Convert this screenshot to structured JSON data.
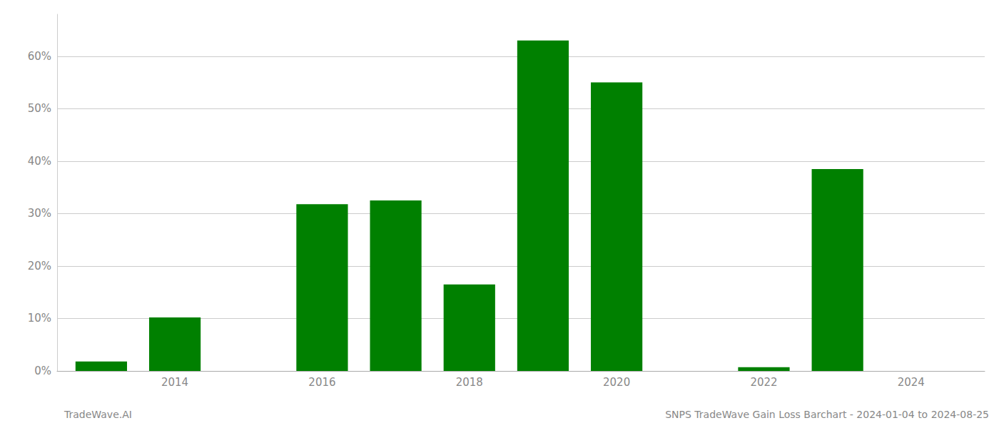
{
  "chart_data": {
    "type": "bar",
    "x": [
      2013,
      2014,
      2015,
      2016,
      2017,
      2018,
      2019,
      2020,
      2021,
      2022,
      2023,
      2024
    ],
    "values": [
      0.018,
      0.102,
      0.0,
      0.318,
      0.325,
      0.165,
      0.63,
      0.55,
      0.0,
      0.007,
      0.385,
      0.0
    ],
    "color": "#008000",
    "xlim": [
      2012.4,
      2025.0
    ],
    "xticks": [
      2014,
      2016,
      2018,
      2020,
      2022,
      2024
    ],
    "ylim": [
      0,
      0.68
    ],
    "yticks": [
      {
        "value": 0,
        "label": "0%"
      },
      {
        "value": 0.1,
        "label": "10%"
      },
      {
        "value": 0.2,
        "label": "20%"
      },
      {
        "value": 0.3,
        "label": "30%"
      },
      {
        "value": 0.4,
        "label": "40%"
      },
      {
        "value": 0.5,
        "label": "50%"
      },
      {
        "value": 0.6,
        "label": "60%"
      }
    ],
    "grid": true,
    "annotations": [
      "TradeWave.AI",
      "SNPS TradeWave Gain Loss Barchart - 2024-01-04 to 2024-08-25"
    ]
  }
}
